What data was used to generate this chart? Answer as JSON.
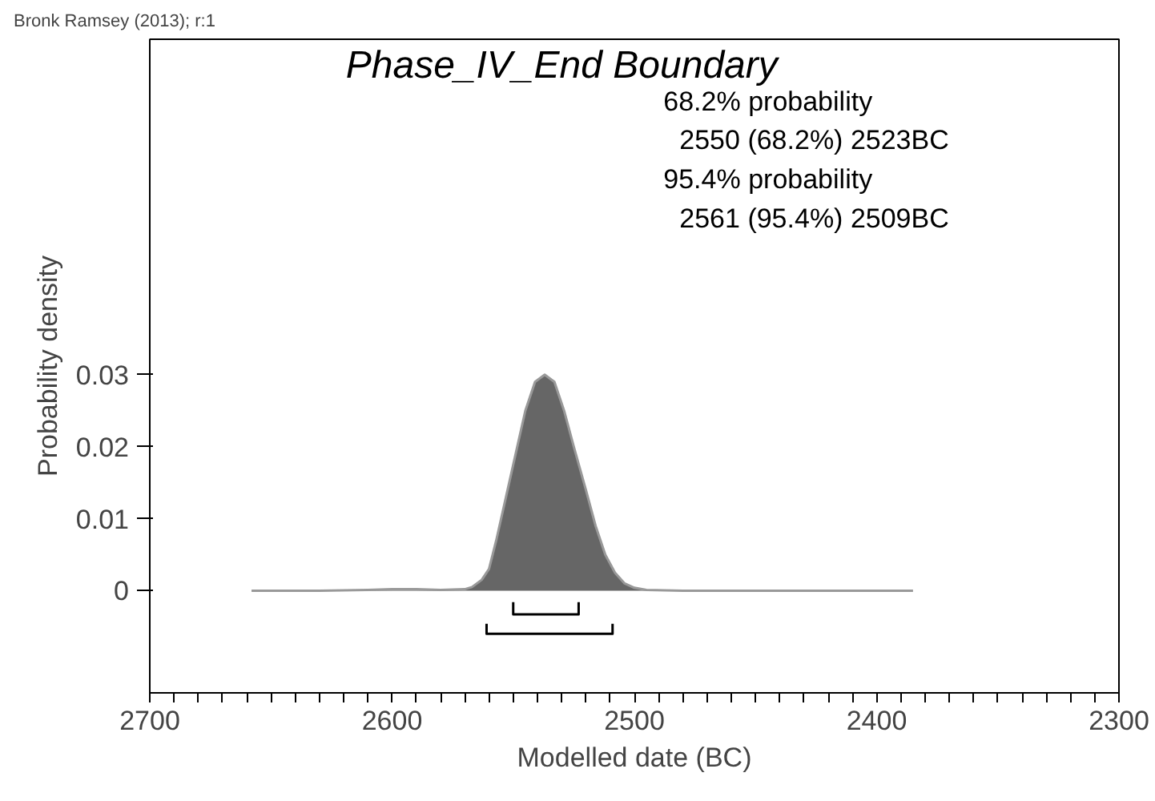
{
  "chart_data": {
    "type": "area",
    "title": "Phase_IV_End Boundary",
    "xlabel": "Modelled date (BC)",
    "ylabel": "Probability density",
    "annotations": [
      "Bronk Ramsey (2013); r:1",
      "68.2% probability",
      "  2550 (68.2%) 2523BC",
      "95.4% probability",
      "  2561 (95.4%) 2509BC"
    ],
    "x": [
      2658,
      2630,
      2610,
      2600,
      2590,
      2580,
      2570,
      2567,
      2563,
      2560,
      2557,
      2553,
      2549,
      2545,
      2541,
      2537,
      2533,
      2529,
      2525,
      2520,
      2516,
      2512,
      2508,
      2504,
      2500,
      2495,
      2480,
      2450,
      2420,
      2385
    ],
    "series": [
      {
        "color": "#666666",
        "values": [
          0,
          0,
          0.0001,
          0.0002,
          0.0002,
          0.0001,
          0.0002,
          0.0005,
          0.0015,
          0.003,
          0.007,
          0.013,
          0.019,
          0.025,
          0.029,
          0.03,
          0.029,
          0.025,
          0.02,
          0.014,
          0.009,
          0.005,
          0.0025,
          0.001,
          0.0004,
          0.0001,
          0,
          0,
          0,
          0
        ]
      },
      {
        "type": "line",
        "color": "#000000",
        "x": [
          2550,
          2550,
          2523,
          2523
        ],
        "values": [
          -0.0016,
          -0.0033,
          -0.0033,
          -0.0016
        ]
      },
      {
        "type": "line",
        "color": "#000000",
        "x": [
          2561,
          2561,
          2509,
          2509
        ],
        "values": [
          -0.0046,
          -0.006,
          -0.006,
          -0.0046
        ]
      }
    ],
    "xlim": [
      2700,
      2300
    ],
    "ylim": [
      -0.0142,
      0.0766
    ],
    "xticks": [
      2700,
      {
        "value": 2690,
        "label": null
      },
      {
        "value": 2680,
        "label": null
      },
      {
        "value": 2670,
        "label": null
      },
      {
        "value": 2660,
        "label": null
      },
      {
        "value": 2650,
        "label": null
      },
      {
        "value": 2640,
        "label": null
      },
      {
        "value": 2630,
        "label": null
      },
      {
        "value": 2620,
        "label": null
      },
      {
        "value": 2610,
        "label": null
      },
      2600,
      {
        "value": 2590,
        "label": null
      },
      {
        "value": 2580,
        "label": null
      },
      {
        "value": 2570,
        "label": null
      },
      {
        "value": 2560,
        "label": null
      },
      {
        "value": 2550,
        "label": null
      },
      {
        "value": 2540,
        "label": null
      },
      {
        "value": 2530,
        "label": null
      },
      {
        "value": 2520,
        "label": null
      },
      {
        "value": 2510,
        "label": null
      },
      2500,
      {
        "value": 2490,
        "label": null
      },
      {
        "value": 2480,
        "label": null
      },
      {
        "value": 2470,
        "label": null
      },
      {
        "value": 2460,
        "label": null
      },
      {
        "value": 2450,
        "label": null
      },
      {
        "value": 2440,
        "label": null
      },
      {
        "value": 2430,
        "label": null
      },
      {
        "value": 2420,
        "label": null
      },
      {
        "value": 2410,
        "label": null
      },
      2400,
      {
        "value": 2390,
        "label": null
      },
      {
        "value": 2380,
        "label": null
      },
      {
        "value": 2370,
        "label": null
      },
      {
        "value": 2360,
        "label": null
      },
      {
        "value": 2350,
        "label": null
      },
      {
        "value": 2340,
        "label": null
      },
      {
        "value": 2330,
        "label": null
      },
      {
        "value": 2320,
        "label": null
      },
      {
        "value": 2310,
        "label": null
      },
      2300
    ],
    "yticks": [
      0,
      0.01,
      0.02,
      0.03
    ],
    "grid": false
  }
}
